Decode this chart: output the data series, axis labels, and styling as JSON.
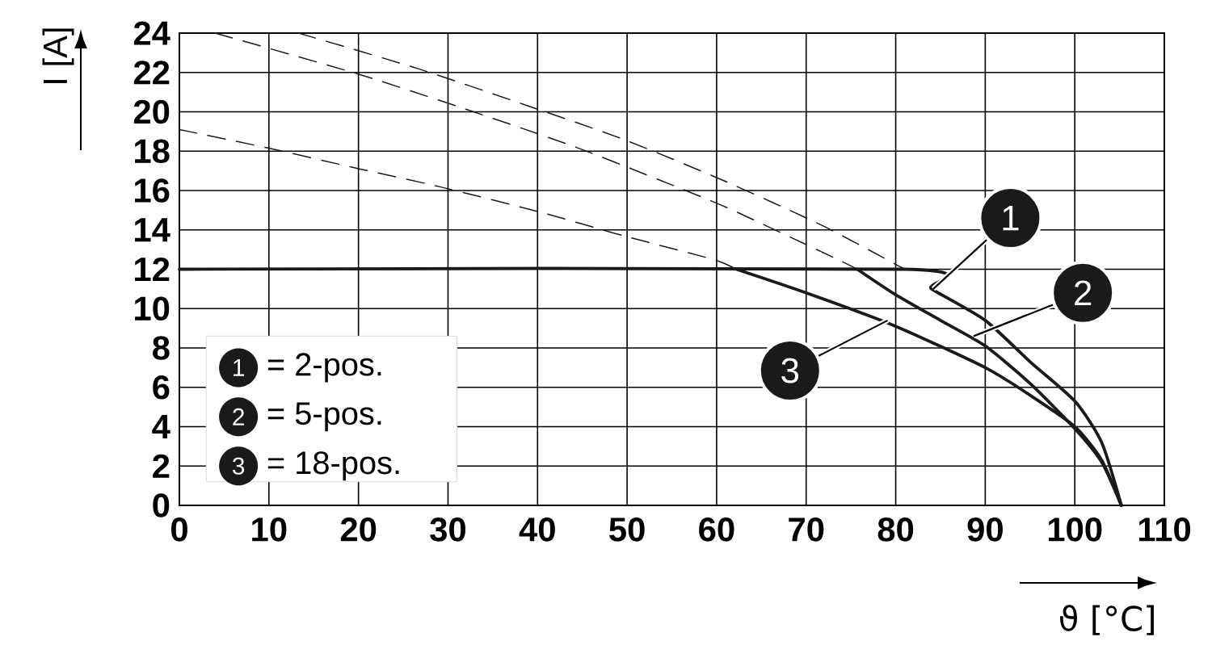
{
  "chart_data": {
    "type": "line",
    "xlabel": "ϑ [°C]",
    "ylabel": "I [A]",
    "xlim": [
      0,
      110
    ],
    "ylim": [
      0,
      24
    ],
    "xticks": [
      0,
      10,
      20,
      30,
      40,
      50,
      60,
      70,
      80,
      90,
      100,
      110
    ],
    "yticks": [
      0,
      2,
      4,
      6,
      8,
      10,
      12,
      14,
      16,
      18,
      20,
      22,
      24
    ],
    "grid": true,
    "legend": "bottom left",
    "annotations": [
      {
        "text": "1",
        "x": 84.2,
        "y": 11.0
      },
      {
        "text": "2",
        "x": 88.7,
        "y": 8.6
      },
      {
        "text": "3",
        "x": 79.1,
        "y": 9.4
      }
    ],
    "series": [
      {
        "name": "= 2-pos.",
        "color": "#1a1a1a",
        "line_style": "solid",
        "x": [
          0,
          81,
          84,
          90,
          95,
          100,
          103,
          105.2
        ],
        "values": [
          12,
          12,
          11.0,
          9.4,
          7.3,
          5.3,
          3.2,
          0
        ]
      },
      {
        "name": "= 5-pos.",
        "color": "#1a1a1a",
        "line_style": "solid",
        "x": [
          75.7,
          80,
          85,
          90,
          95,
          100,
          103,
          105.2
        ],
        "values": [
          12,
          10.7,
          9.4,
          8.1,
          6.2,
          3.9,
          2.2,
          0
        ]
      },
      {
        "name": "= 18-pos.",
        "color": "#1a1a1a",
        "line_style": "solid",
        "x": [
          62.2,
          70,
          80,
          90,
          95,
          100,
          103,
          105.2
        ],
        "values": [
          12,
          10.8,
          9.1,
          7.0,
          5.6,
          4.0,
          2.3,
          0
        ]
      },
      {
        "color": "#1a1a1a",
        "line_style": "dashed",
        "x": [
          13.3,
          26.6,
          38.3,
          49.6,
          60.8,
          71.9,
          81
        ],
        "values": [
          24,
          22.2,
          20.4,
          18.6,
          16.5,
          14.2,
          12
        ]
      },
      {
        "color": "#1a1a1a",
        "line_style": "dashed",
        "x": [
          4.0,
          20.1,
          32.2,
          44.3,
          56.0,
          61.8,
          73.5,
          75.7
        ],
        "values": [
          24,
          21.9,
          20.1,
          18.2,
          16.1,
          15.0,
          12.5,
          12
        ]
      },
      {
        "color": "#1a1a1a",
        "line_style": "dashed",
        "x": [
          0,
          10.5,
          20.1,
          29.0,
          40.3,
          49.6,
          59.6,
          62.2
        ],
        "values": [
          19.1,
          18.1,
          17.1,
          16.2,
          14.9,
          13.7,
          12.5,
          12
        ]
      }
    ]
  }
}
